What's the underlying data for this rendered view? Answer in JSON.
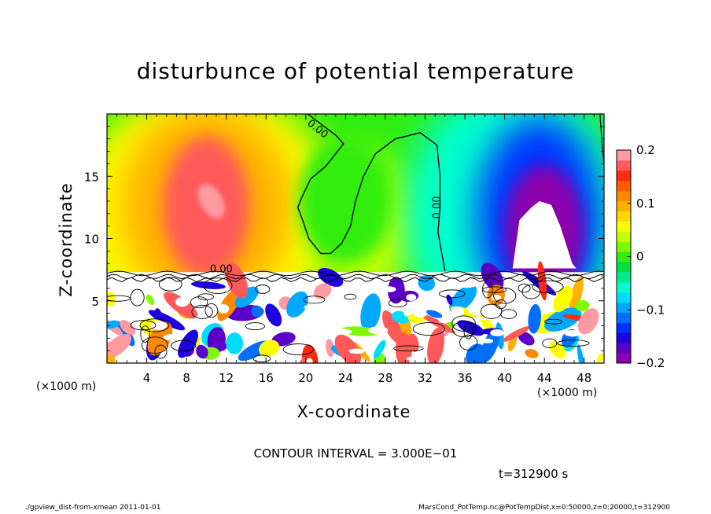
{
  "chart_data": {
    "type": "heatmap",
    "title": "disturbunce of potential temperature",
    "xlabel": "X-coordinate",
    "ylabel": "Z-coordinate",
    "x_unit_left": "(×1000 m)",
    "x_unit_right": "(×1000 m)",
    "xlim": [
      0,
      50
    ],
    "ylim": [
      0,
      20
    ],
    "x_ticks": [
      4,
      8,
      12,
      16,
      20,
      24,
      28,
      32,
      36,
      40,
      44,
      48
    ],
    "y_ticks": [
      5,
      10,
      15
    ],
    "colorbar": {
      "range": [
        -0.2,
        0.2
      ],
      "tick_values": [
        0.2,
        0.1,
        0,
        -0.1,
        -0.2
      ],
      "tick_labels": [
        "0.2",
        "0.1",
        "0",
        "−0.1",
        "−0.2"
      ],
      "colors": [
        "#8b00aa",
        "#5a00c8",
        "#1e00e0",
        "#0032ff",
        "#006eff",
        "#00a8ff",
        "#00dcff",
        "#00ffd0",
        "#00e890",
        "#00e040",
        "#30ee10",
        "#80f800",
        "#c8ff00",
        "#ffff00",
        "#ffd800",
        "#ffb000",
        "#ff8800",
        "#ff5a00",
        "#ff2a10",
        "#ff5a5a",
        "#ff9aa0"
      ]
    },
    "contour_labels": [
      "0.00",
      "0.00",
      "0.00"
    ],
    "contour_interval": "CONTOUR INTERVAL = 3.000E−01",
    "time": "t=312900  s",
    "features": [
      {
        "name": "warm anomaly core",
        "x": 10,
        "z": 12.5,
        "value": 0.18
      },
      {
        "name": "cold anomaly core",
        "x": 44,
        "z": 10.5,
        "value": -0.2
      }
    ]
  },
  "footer": {
    "left": "./gpview_dist-from-xmean  2011-01-01",
    "right": "MarsCond_PotTemp.nc@PotTempDist,x=0:50000,z=0:20000,t=312900"
  }
}
